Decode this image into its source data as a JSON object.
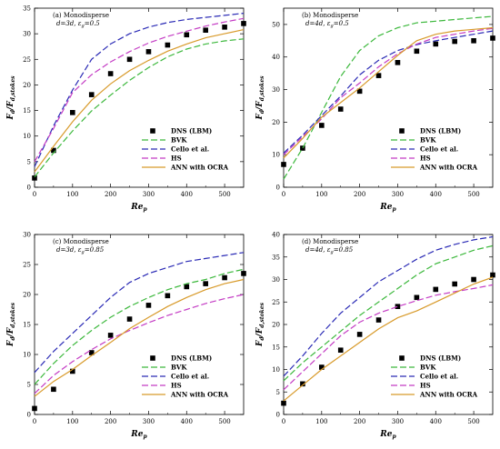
{
  "colors": {
    "DNS (LBM)": "#000000",
    "BVK": "#3cb83c",
    "Cello et al.": "#2a2ab5",
    "HS": "#c43cc4",
    "ANN with OCRA": "#d89a2a"
  },
  "chart_data": [
    {
      "type": "line",
      "xlabel_main": "Re",
      "xlabel_sub": "p",
      "ylabel_main": "F",
      "ylabel_sub1": "d",
      "ylabel_mid": "/F",
      "ylabel_sub2": "d,stokes",
      "annotation": {
        "line1": "(a) Monodisperse",
        "line2": "d=3d, ε",
        "line2_sub": "g",
        "line2_end": "=0.5"
      },
      "xlim": [
        0,
        550
      ],
      "ylim": [
        0,
        35
      ],
      "xticks": [
        "0",
        "100",
        "200",
        "300",
        "400",
        "500"
      ],
      "yticks": [
        "0",
        "5",
        "10",
        "15",
        "20",
        "25",
        "30",
        "35"
      ],
      "legend": [
        "DNS (LBM)",
        "BVK",
        "Cello et al.",
        "HS",
        "ANN with OCRA"
      ],
      "series": [
        {
          "name": "DNS (LBM)",
          "style": "markers",
          "x": [
            0,
            50,
            100,
            150,
            200,
            250,
            300,
            350,
            400,
            450,
            500,
            550
          ],
          "y": [
            1.8,
            7.2,
            14.6,
            18.1,
            22.2,
            25.0,
            26.5,
            27.8,
            29.8,
            30.7,
            31.3,
            32.0
          ]
        },
        {
          "name": "BVK",
          "style": "dashed",
          "x": [
            0,
            50,
            100,
            150,
            200,
            250,
            300,
            350,
            400,
            450,
            500,
            550
          ],
          "y": [
            2.0,
            6.7,
            11.0,
            14.9,
            18.0,
            20.9,
            23.4,
            25.5,
            27.0,
            28.0,
            28.6,
            29.0
          ]
        },
        {
          "name": "Cello et al.",
          "style": "dashed",
          "x": [
            0,
            50,
            100,
            150,
            200,
            250,
            300,
            350,
            400,
            450,
            500,
            550
          ],
          "y": [
            4.0,
            12.0,
            19.0,
            25.0,
            28.0,
            30.0,
            31.3,
            32.2,
            32.8,
            33.2,
            33.6,
            34.0
          ]
        },
        {
          "name": "HS",
          "style": "dashed",
          "x": [
            0,
            50,
            100,
            150,
            200,
            250,
            300,
            350,
            400,
            450,
            500,
            550
          ],
          "y": [
            5.0,
            11.5,
            18.5,
            22.0,
            24.5,
            26.5,
            28.2,
            29.5,
            30.5,
            31.5,
            32.3,
            33.0
          ]
        },
        {
          "name": "ANN with OCRA",
          "style": "solid",
          "x": [
            0,
            50,
            100,
            150,
            200,
            250,
            300,
            350,
            400,
            450,
            500,
            550
          ],
          "y": [
            3.0,
            8.0,
            12.8,
            17.0,
            20.2,
            22.8,
            24.8,
            26.6,
            28.0,
            29.2,
            30.0,
            30.8
          ]
        }
      ]
    },
    {
      "type": "line",
      "xlabel_main": "Re",
      "xlabel_sub": "p",
      "ylabel_main": "F",
      "ylabel_sub1": "d",
      "ylabel_mid": "/F",
      "ylabel_sub2": "d,stokes",
      "annotation": {
        "line1": "(b) Monodisperse",
        "line2": "d=4d, ε",
        "line2_sub": "g",
        "line2_end": "=0.5"
      },
      "xlim": [
        0,
        550
      ],
      "ylim": [
        0,
        55
      ],
      "xticks": [
        "0",
        "100",
        "200",
        "300",
        "400",
        "500"
      ],
      "yticks": [
        "0",
        "10",
        "20",
        "30",
        "40",
        "50"
      ],
      "legend": [
        "DNS (LBM)",
        "BVK",
        "Cello et al.",
        "HS",
        "ANN with OCRA"
      ],
      "series": [
        {
          "name": "DNS (LBM)",
          "style": "markers",
          "x": [
            0,
            50,
            100,
            150,
            200,
            250,
            300,
            350,
            400,
            450,
            500,
            550
          ],
          "y": [
            7.0,
            12.0,
            19.0,
            24.0,
            29.5,
            34.3,
            38.3,
            41.8,
            44.0,
            44.8,
            45.0,
            45.8
          ]
        },
        {
          "name": "BVK",
          "style": "dashed",
          "x": [
            0,
            50,
            100,
            150,
            200,
            250,
            300,
            350,
            400,
            450,
            500,
            550
          ],
          "y": [
            2.5,
            12.0,
            23.0,
            34.0,
            42.0,
            46.5,
            49.0,
            50.5,
            51.0,
            51.5,
            52.0,
            52.5
          ]
        },
        {
          "name": "Cello et al.",
          "style": "dashed",
          "x": [
            0,
            50,
            100,
            150,
            200,
            250,
            300,
            350,
            400,
            450,
            500,
            550
          ],
          "y": [
            10.5,
            16.0,
            22.0,
            28.0,
            34.5,
            39.0,
            42.0,
            43.8,
            45.0,
            46.0,
            47.0,
            48.0
          ]
        },
        {
          "name": "HS",
          "style": "dashed",
          "x": [
            0,
            50,
            100,
            150,
            200,
            250,
            300,
            350,
            400,
            450,
            500,
            550
          ],
          "y": [
            10.0,
            15.5,
            21.0,
            27.5,
            32.0,
            37.0,
            41.0,
            44.0,
            46.0,
            47.0,
            48.0,
            48.8
          ]
        },
        {
          "name": "ANN with OCRA",
          "style": "solid",
          "x": [
            0,
            50,
            100,
            150,
            200,
            250,
            300,
            350,
            400,
            450,
            500,
            550
          ],
          "y": [
            9.0,
            15.0,
            21.5,
            26.0,
            30.5,
            35.5,
            40.5,
            45.0,
            47.0,
            48.0,
            48.5,
            49.0
          ]
        }
      ]
    },
    {
      "type": "line",
      "xlabel_main": "Re",
      "xlabel_sub": "p",
      "ylabel_main": "F",
      "ylabel_sub1": "d",
      "ylabel_mid": "/F",
      "ylabel_sub2": "d,stokes",
      "annotation": {
        "line1": "(c) Monodisperse",
        "line2": "d=3d, ε",
        "line2_sub": "g",
        "line2_end": "=0.85"
      },
      "xlim": [
        0,
        550
      ],
      "ylim": [
        0,
        30
      ],
      "xticks": [
        "0",
        "100",
        "200",
        "300",
        "400",
        "500"
      ],
      "yticks": [
        "0",
        "5",
        "10",
        "15",
        "20",
        "25",
        "30"
      ],
      "legend": [
        "DNS (LBM)",
        "BVK",
        "Cello et al.",
        "HS",
        "ANN with OCRA"
      ],
      "series": [
        {
          "name": "DNS (LBM)",
          "style": "markers",
          "x": [
            0,
            50,
            100,
            150,
            200,
            250,
            300,
            350,
            400,
            450,
            500,
            550
          ],
          "y": [
            1.0,
            4.2,
            7.2,
            10.3,
            13.2,
            15.9,
            18.2,
            19.8,
            21.3,
            21.8,
            22.8,
            23.5
          ]
        },
        {
          "name": "BVK",
          "style": "dashed",
          "x": [
            0,
            50,
            100,
            150,
            200,
            250,
            300,
            350,
            400,
            450,
            500,
            550
          ],
          "y": [
            5.0,
            8.5,
            11.5,
            14.0,
            16.2,
            18.0,
            19.5,
            20.8,
            21.8,
            22.5,
            23.5,
            24.2
          ]
        },
        {
          "name": "Cello et al.",
          "style": "dashed",
          "x": [
            0,
            50,
            100,
            150,
            200,
            250,
            300,
            350,
            400,
            450,
            500,
            550
          ],
          "y": [
            7.0,
            10.5,
            13.5,
            16.5,
            19.5,
            22.0,
            23.5,
            24.5,
            25.5,
            26.0,
            26.5,
            27.0
          ]
        },
        {
          "name": "HS",
          "style": "dashed",
          "x": [
            0,
            50,
            100,
            150,
            200,
            250,
            300,
            350,
            400,
            450,
            500,
            550
          ],
          "y": [
            3.5,
            6.5,
            8.8,
            10.8,
            12.6,
            14.0,
            15.3,
            16.5,
            17.5,
            18.5,
            19.3,
            20.0
          ]
        },
        {
          "name": "ANN with OCRA",
          "style": "solid",
          "x": [
            0,
            50,
            100,
            150,
            200,
            250,
            300,
            350,
            400,
            450,
            500,
            550
          ],
          "y": [
            3.0,
            5.5,
            7.5,
            9.8,
            12.0,
            14.3,
            16.2,
            18.0,
            19.5,
            20.8,
            21.8,
            22.5
          ]
        }
      ]
    },
    {
      "type": "line",
      "xlabel_main": "Re",
      "xlabel_sub": "p",
      "ylabel_main": "F",
      "ylabel_sub1": "d",
      "ylabel_mid": "/F",
      "ylabel_sub2": "d,stokes",
      "annotation": {
        "line1": "(d) Monodisperse",
        "line2": "d=4d, ε",
        "line2_sub": "g",
        "line2_end": "=0.85"
      },
      "xlim": [
        0,
        550
      ],
      "ylim": [
        0,
        40
      ],
      "xticks": [
        "0",
        "100",
        "200",
        "300",
        "400",
        "500"
      ],
      "yticks": [
        "0",
        "5",
        "10",
        "15",
        "20",
        "25",
        "30",
        "35",
        "40"
      ],
      "legend": [
        "DNS (LBM)",
        "BVK",
        "Cello et al.",
        "HS",
        "ANN with OCRA"
      ],
      "series": [
        {
          "name": "DNS (LBM)",
          "style": "markers",
          "x": [
            0,
            50,
            100,
            150,
            200,
            250,
            300,
            350,
            400,
            450,
            500,
            550
          ],
          "y": [
            2.5,
            6.8,
            10.5,
            14.3,
            17.8,
            21.0,
            24.0,
            26.0,
            27.8,
            29.0,
            30.0,
            31.0
          ]
        },
        {
          "name": "BVK",
          "style": "dashed",
          "x": [
            0,
            50,
            100,
            150,
            200,
            250,
            300,
            350,
            400,
            450,
            500,
            550
          ],
          "y": [
            7.5,
            11.5,
            15.0,
            18.5,
            22.0,
            25.0,
            28.0,
            31.0,
            33.5,
            35.0,
            36.5,
            37.5
          ]
        },
        {
          "name": "Cello et al.",
          "style": "dashed",
          "x": [
            0,
            50,
            100,
            150,
            200,
            250,
            300,
            350,
            400,
            450,
            500,
            550
          ],
          "y": [
            8.5,
            13.0,
            18.0,
            22.5,
            26.0,
            29.5,
            32.0,
            34.5,
            36.5,
            37.8,
            38.8,
            39.5
          ]
        },
        {
          "name": "HS",
          "style": "dashed",
          "x": [
            0,
            50,
            100,
            150,
            200,
            250,
            300,
            350,
            400,
            450,
            500,
            550
          ],
          "y": [
            5.5,
            9.5,
            13.5,
            17.5,
            20.5,
            22.5,
            24.0,
            25.3,
            26.5,
            27.3,
            28.0,
            28.8
          ]
        },
        {
          "name": "ANN with OCRA",
          "style": "solid",
          "x": [
            0,
            50,
            100,
            150,
            200,
            250,
            300,
            350,
            400,
            450,
            500,
            550
          ],
          "y": [
            3.0,
            6.5,
            10.0,
            13.0,
            16.0,
            19.0,
            21.5,
            23.0,
            25.0,
            27.0,
            29.0,
            30.5
          ]
        }
      ]
    }
  ]
}
